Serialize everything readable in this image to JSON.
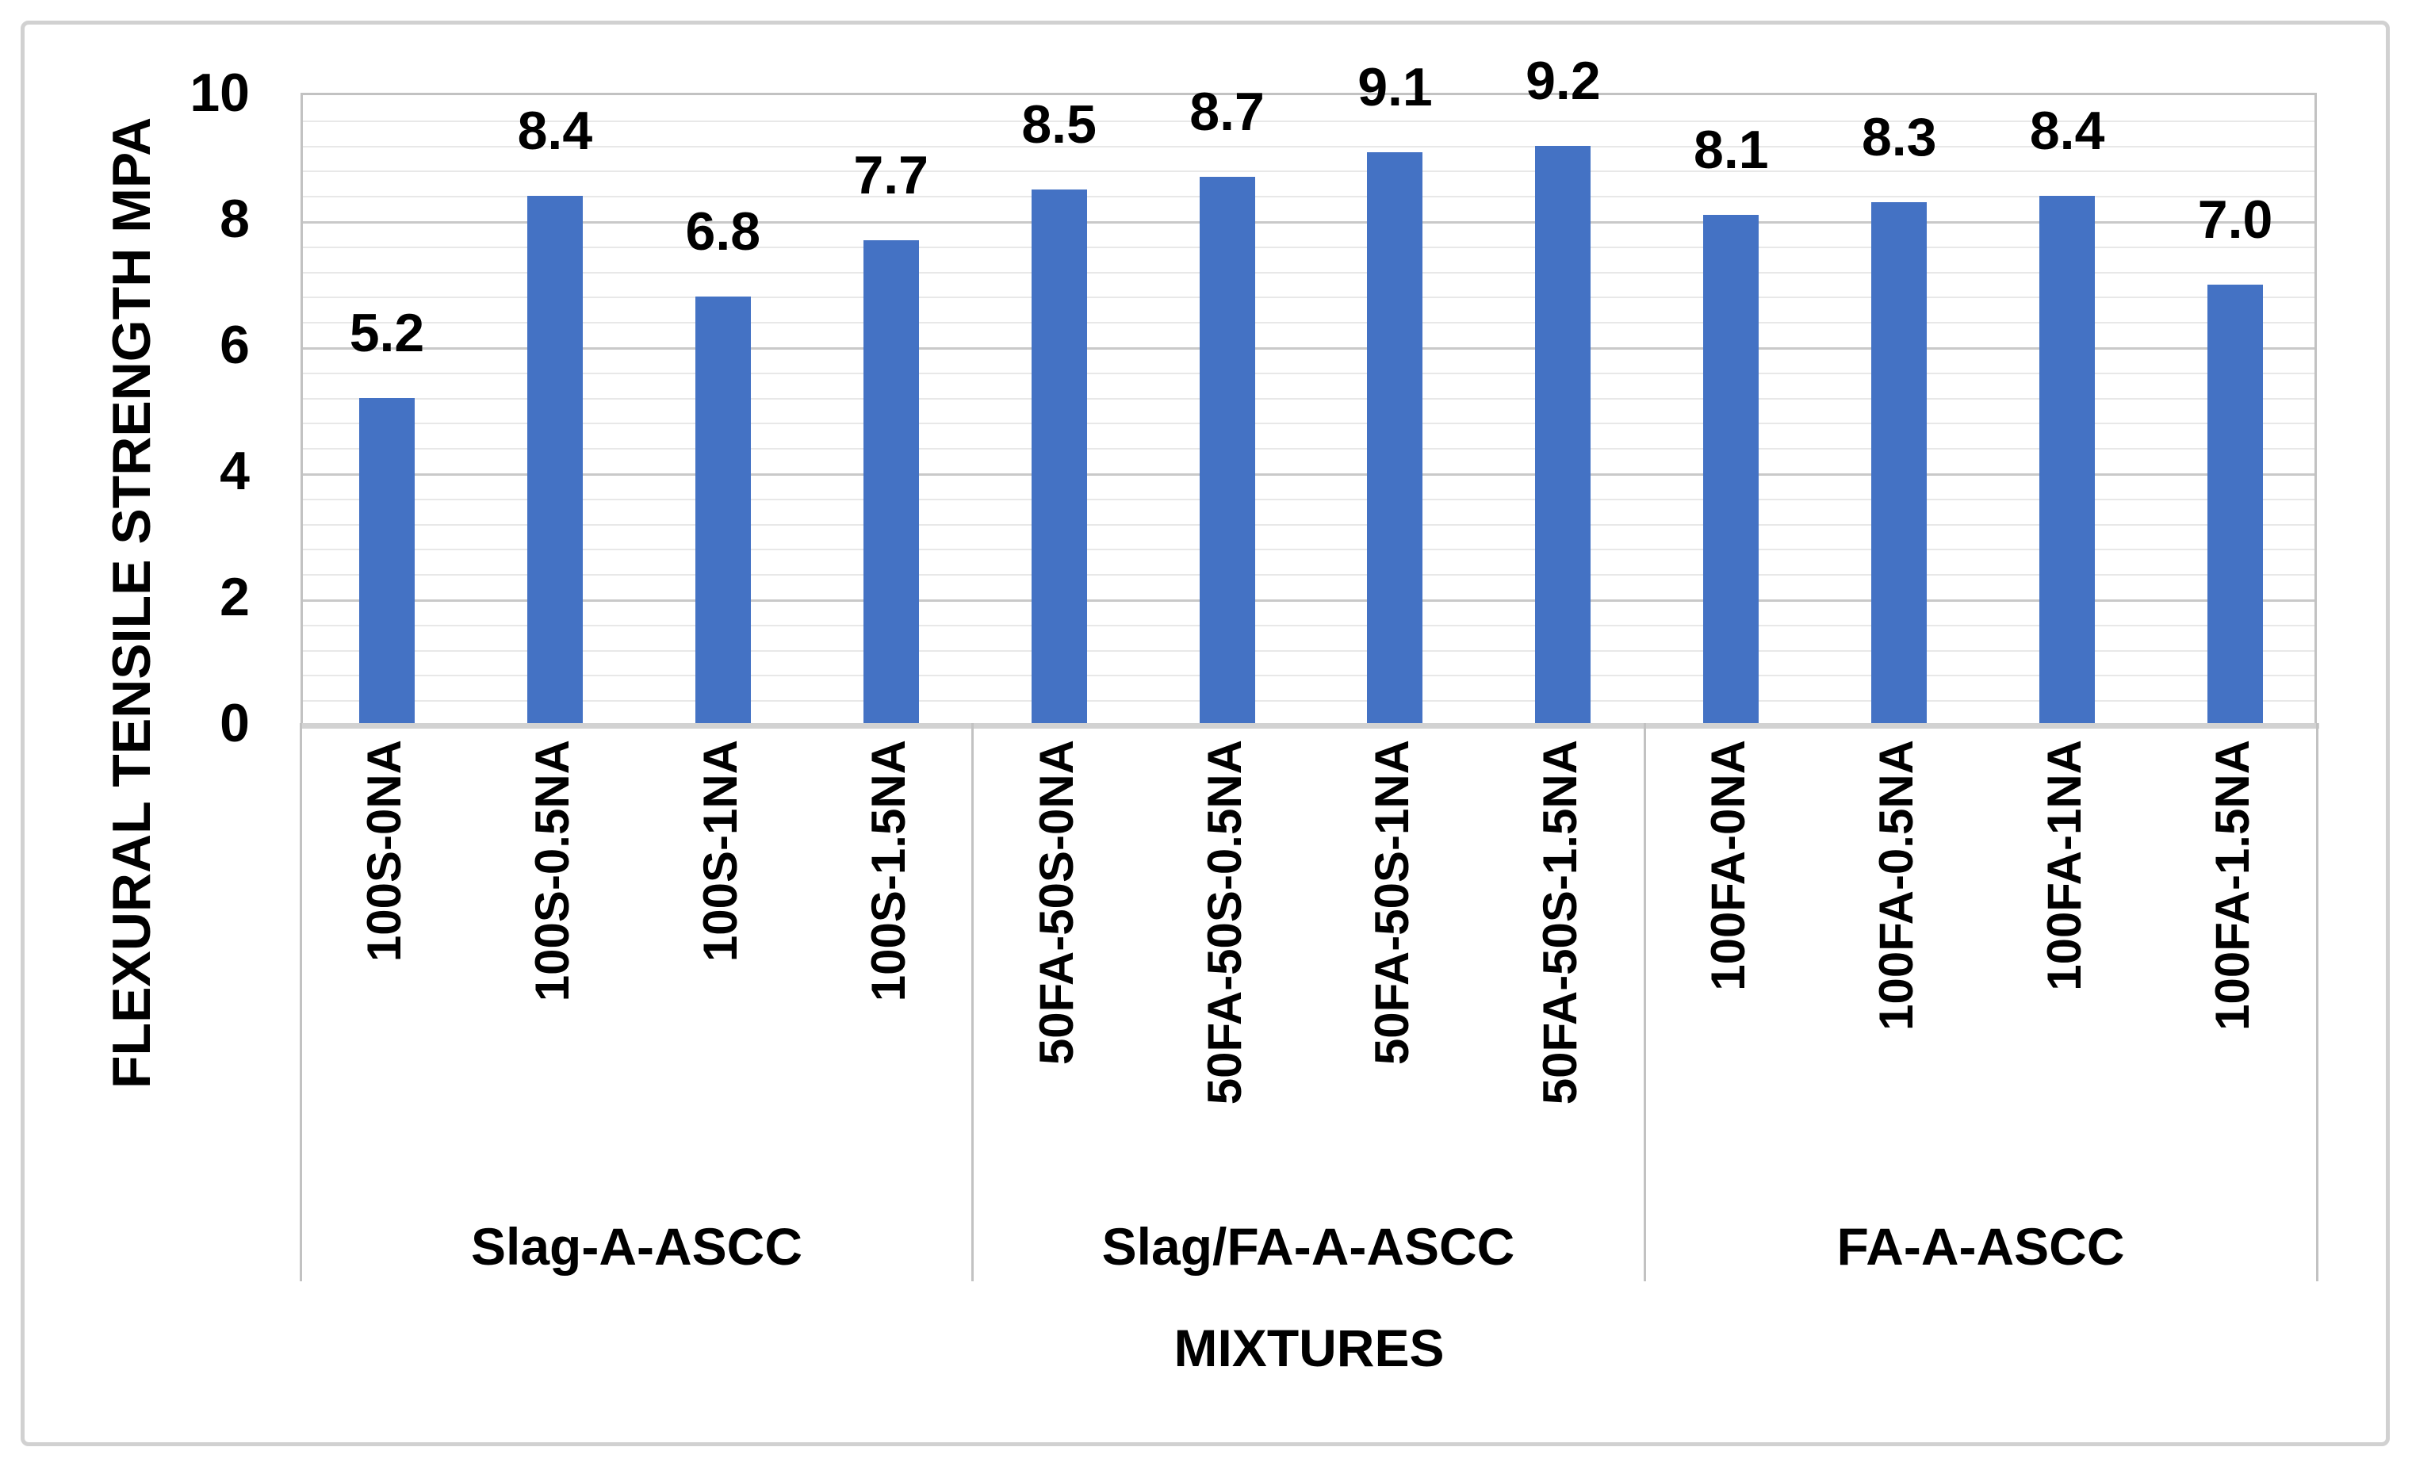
{
  "chart_data": {
    "type": "bar",
    "title": "",
    "xlabel": "MIXTURES",
    "ylabel": "FLEXURAL TENSILE STRENGTH MPA",
    "ylim": [
      0,
      10
    ],
    "ytick_step": 2,
    "yticks": [
      0,
      2,
      4,
      6,
      8,
      10
    ],
    "minor_grid_step": 0.4,
    "grid": {
      "major": true,
      "minor": true
    },
    "legend_position": "none",
    "bar_color": "#4472C4",
    "value_label_decimals": 1,
    "groups": [
      {
        "label": "Slag-A-ASCC",
        "items": [
          {
            "category": "100S-0NA",
            "value": 5.2
          },
          {
            "category": "100S-0.5NA",
            "value": 8.4
          },
          {
            "category": "100S-1NA",
            "value": 6.8
          },
          {
            "category": "100S-1.5NA",
            "value": 7.7
          }
        ]
      },
      {
        "label": "Slag/FA-A-ASCC",
        "items": [
          {
            "category": "50FA-50S-0NA",
            "value": 8.5
          },
          {
            "category": "50FA-50S-0.5NA",
            "value": 8.7
          },
          {
            "category": "50FA-50S-1NA",
            "value": 9.1
          },
          {
            "category": "50FA-50S-1.5NA",
            "value": 9.2
          }
        ]
      },
      {
        "label": "FA-A-ASCC",
        "items": [
          {
            "category": "100FA-0NA",
            "value": 8.1
          },
          {
            "category": "100FA-0.5NA",
            "value": 8.3
          },
          {
            "category": "100FA-1NA",
            "value": 8.4
          },
          {
            "category": "100FA-1.5NA",
            "value": 7.0
          }
        ]
      }
    ]
  }
}
